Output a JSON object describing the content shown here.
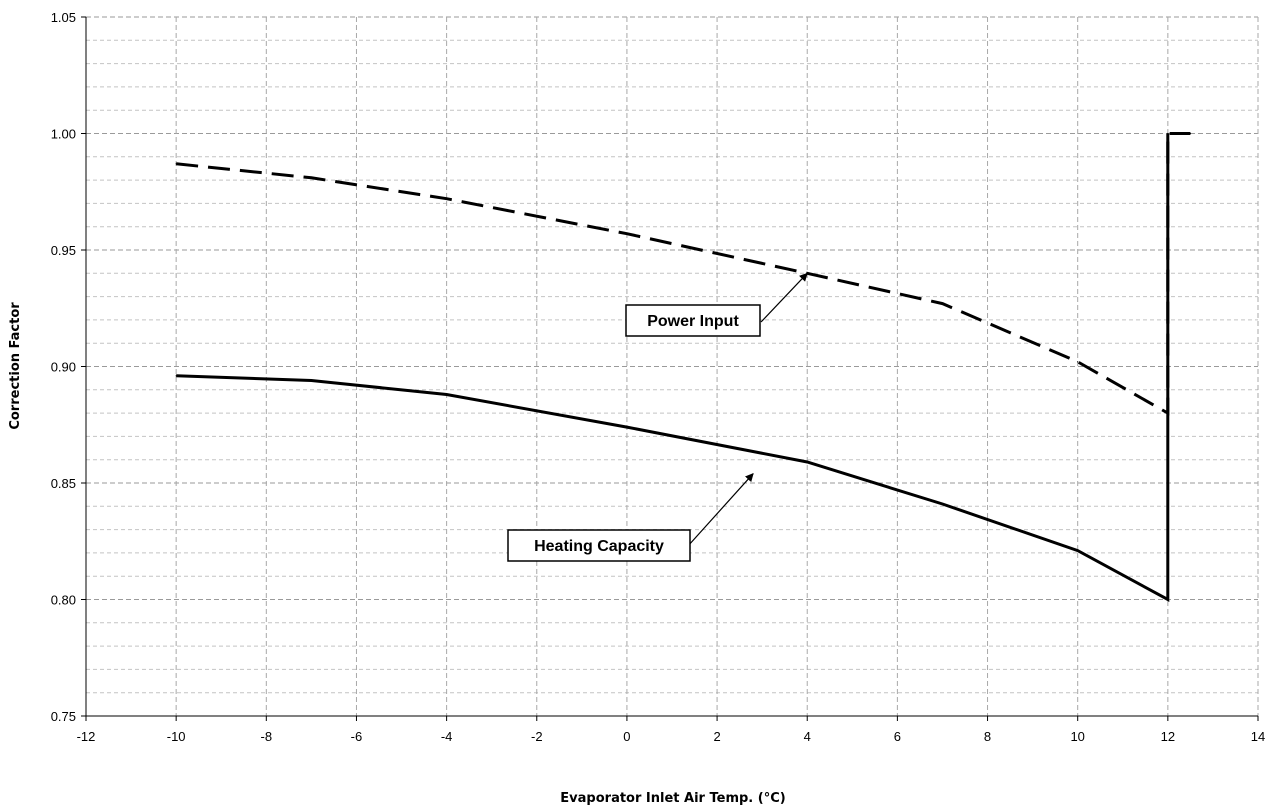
{
  "chart_data": {
    "type": "line",
    "title": "",
    "xlabel": "Evaporator Inlet Air Temp. (°C)",
    "ylabel": "Correction Factor",
    "xlim": [
      -12,
      14
    ],
    "ylim": [
      0.75,
      1.05
    ],
    "x_ticks": [
      -12,
      -10,
      -8,
      -6,
      -4,
      -2,
      0,
      2,
      4,
      6,
      8,
      10,
      12,
      14
    ],
    "y_ticks": [
      0.75,
      0.8,
      0.85,
      0.9,
      0.95,
      1.0,
      1.05
    ],
    "x_tick_labels": [
      "-12",
      "-10",
      "-8",
      "-6",
      "-4",
      "-2",
      "0",
      "2",
      "4",
      "6",
      "8",
      "10",
      "12",
      "14"
    ],
    "y_tick_labels": [
      "0.75",
      "0.80",
      "0.85",
      "0.90",
      "0.95",
      "1.00",
      "1.05"
    ],
    "grid": true,
    "grid_style": "dashed",
    "legend": "none",
    "series": [
      {
        "line_style": "dashed",
        "color": "#000000",
        "x": [
          -10,
          -7,
          -4,
          0,
          4,
          7,
          10,
          12,
          12,
          12.5
        ],
        "y": [
          0.987,
          0.981,
          0.972,
          0.957,
          0.94,
          0.927,
          0.902,
          0.88,
          1.0,
          1.0
        ]
      },
      {
        "line_style": "solid",
        "color": "#000000",
        "x": [
          -10,
          -7,
          -4,
          0,
          4,
          7,
          10,
          12,
          12
        ],
        "y": [
          0.896,
          0.894,
          0.888,
          0.874,
          0.859,
          0.841,
          0.821,
          0.8,
          1.0
        ]
      }
    ],
    "annotations": [
      {
        "text": "Power Input",
        "x": 4,
        "y": 0.94
      },
      {
        "text": "Heating Capacity",
        "x": 2.8,
        "y": 0.854
      }
    ]
  }
}
